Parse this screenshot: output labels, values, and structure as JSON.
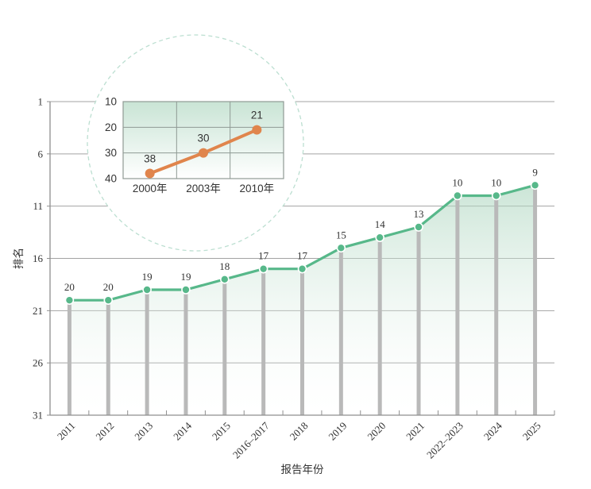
{
  "figure": {
    "background": "#ffffff"
  },
  "chart_data": [
    {
      "id": "main-ranking-trend",
      "type": "line",
      "title": "",
      "xlabel": "报告年份",
      "ylabel": "排名",
      "categories": [
        "2011",
        "2012",
        "2013",
        "2014",
        "2015",
        "2016–2017",
        "2018",
        "2019",
        "2020",
        "2021",
        "2022–2023",
        "2024",
        "2025"
      ],
      "values": [
        20,
        20,
        19,
        19,
        18,
        17,
        17,
        15,
        14,
        13,
        10,
        10,
        9
      ],
      "point_labels": [
        "20",
        "20",
        "19",
        "19",
        "18",
        "17",
        "17",
        "15",
        "14",
        "13",
        "10",
        "10",
        "9"
      ],
      "y_ticks": [
        1,
        6,
        11,
        16,
        21,
        26,
        31
      ],
      "y_tick_labels": [
        "1",
        "6",
        "11",
        "16",
        "21",
        "26",
        "31"
      ],
      "ylim": [
        1,
        31
      ],
      "y_axis_inverted": true,
      "grid": true,
      "legend_position": "none",
      "style": {
        "line_color": "#57b88a",
        "marker_fill": "#57b88a",
        "marker_border": "#ffffff",
        "stem_color": "#b9b9b9",
        "area_top": "#a9d4bc",
        "area_bottom": "#ffffff",
        "grid_color": "#a3a3a3",
        "axis_color": "#8f8f8f",
        "text_color": "#333333"
      }
    },
    {
      "id": "inset-early-years",
      "type": "line",
      "title": "",
      "xlabel": "",
      "ylabel": "",
      "categories": [
        "2000年",
        "2003年",
        "2010年"
      ],
      "values": [
        38,
        30,
        21
      ],
      "point_labels": [
        "38",
        "30",
        "21"
      ],
      "y_ticks": [
        10,
        20,
        30,
        40
      ],
      "y_tick_labels": [
        "10",
        "20",
        "30",
        "40"
      ],
      "ylim": [
        10,
        40
      ],
      "y_axis_inverted": true,
      "grid": true,
      "legend_position": "none",
      "style": {
        "line_color": "#e0854c",
        "marker_fill": "#e0854c",
        "bg_top": "#c9e4d5",
        "bg_bottom": "#ffffff",
        "grid_color": "#8f9a94",
        "text_color": "#333333"
      }
    }
  ],
  "inset_circle": {
    "fill": "#ffffff",
    "border_color": "#bcdfd1"
  }
}
